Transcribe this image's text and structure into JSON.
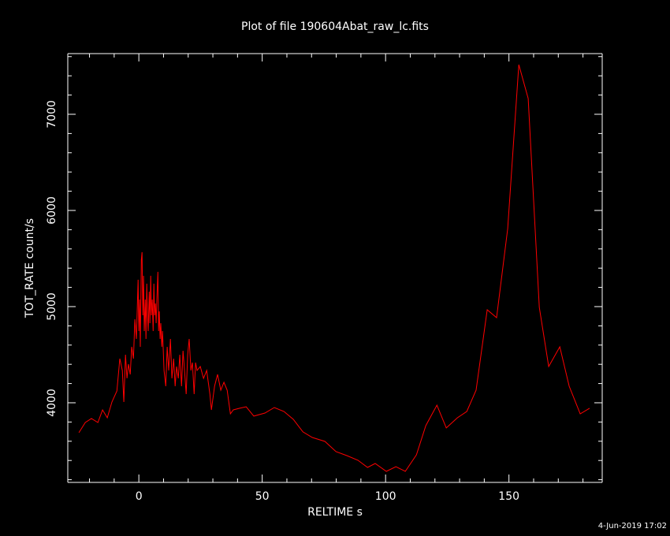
{
  "chart_data": {
    "type": "line",
    "title": "Plot of file 190604Abat_raw_lc.fits",
    "x_label": "RELTIME  s",
    "y_label": "TOT_RATE  count/s",
    "footer": "4-Jun-2019 17:02",
    "xlim": [
      -28.8,
      187.8
    ],
    "ylim": [
      3172,
      7631
    ],
    "xticks": [
      0,
      50,
      100,
      150
    ],
    "yticks": [
      4000,
      5000,
      6000,
      7000
    ],
    "x": [
      -24.3,
      -21.7,
      -19.2,
      -16.6,
      -14.7,
      -12.8,
      -10.9,
      -8.9,
      -7.7,
      -6.7,
      -6.1,
      -5.4,
      -4.8,
      -4.2,
      -3.5,
      -2.9,
      -2.2,
      -1.6,
      -1.0,
      -0.3,
      0,
      0.3,
      0.6,
      1.0,
      1.3,
      1.6,
      1.9,
      2.2,
      2.6,
      2.9,
      3.2,
      3.5,
      3.8,
      4.2,
      4.5,
      4.8,
      5.1,
      5.4,
      5.8,
      6.1,
      6.4,
      6.7,
      7.0,
      7.3,
      7.7,
      8.0,
      8.3,
      8.6,
      8.9,
      9.3,
      9.6,
      10.2,
      10.9,
      11.5,
      12.1,
      12.8,
      13.4,
      14.1,
      14.7,
      15.3,
      16.0,
      16.6,
      17.3,
      17.9,
      18.5,
      19.2,
      19.8,
      20.4,
      21.1,
      21.7,
      22.4,
      23.0,
      23.6,
      24.9,
      26.2,
      27.5,
      28.8,
      29.4,
      30.7,
      31.9,
      33.2,
      34.5,
      35.8,
      37.1,
      38.3,
      40.9,
      43.5,
      46.6,
      51.1,
      54.9,
      58.8,
      62.6,
      66.5,
      70.3,
      75.4,
      79.9,
      84.3,
      88.8,
      92.7,
      95.8,
      100.3,
      104.2,
      108.0,
      112.5,
      116.3,
      120.8,
      124.6,
      129.1,
      132.9,
      136.7,
      141.2,
      145.0,
      149.5,
      154.0,
      157.8,
      162.3,
      166.1,
      170.6,
      174.4,
      178.9,
      182.7
    ],
    "series": [
      {
        "name": "TOT_RATE",
        "color": "#ff0000",
        "values": [
          3689,
          3795,
          3836,
          3795,
          3926,
          3844,
          4008,
          4123,
          4459,
          4336,
          4008,
          4500,
          4254,
          4402,
          4295,
          4582,
          4459,
          4869,
          4664,
          5279,
          4746,
          5074,
          4582,
          5484,
          5566,
          4910,
          5320,
          4746,
          5074,
          4664,
          5238,
          4910,
          4746,
          5156,
          4828,
          5320,
          4910,
          5074,
          4746,
          5238,
          4910,
          5033,
          4828,
          5074,
          5361,
          4746,
          4951,
          4664,
          4828,
          4582,
          4746,
          4336,
          4172,
          4582,
          4336,
          4664,
          4254,
          4459,
          4172,
          4377,
          4254,
          4500,
          4172,
          4541,
          4336,
          4090,
          4500,
          4664,
          4336,
          4418,
          4090,
          4418,
          4336,
          4377,
          4254,
          4336,
          4090,
          3926,
          4172,
          4295,
          4131,
          4213,
          4131,
          3885,
          3926,
          3943,
          3959,
          3861,
          3893,
          3951,
          3910,
          3828,
          3697,
          3639,
          3598,
          3492,
          3451,
          3402,
          3328,
          3369,
          3287,
          3336,
          3287,
          3459,
          3762,
          3975,
          3738,
          3844,
          3910,
          4131,
          4967,
          4885,
          5811,
          7516,
          7164,
          4992,
          4377,
          4582,
          4172,
          3885,
          3943
        ]
      }
    ]
  }
}
